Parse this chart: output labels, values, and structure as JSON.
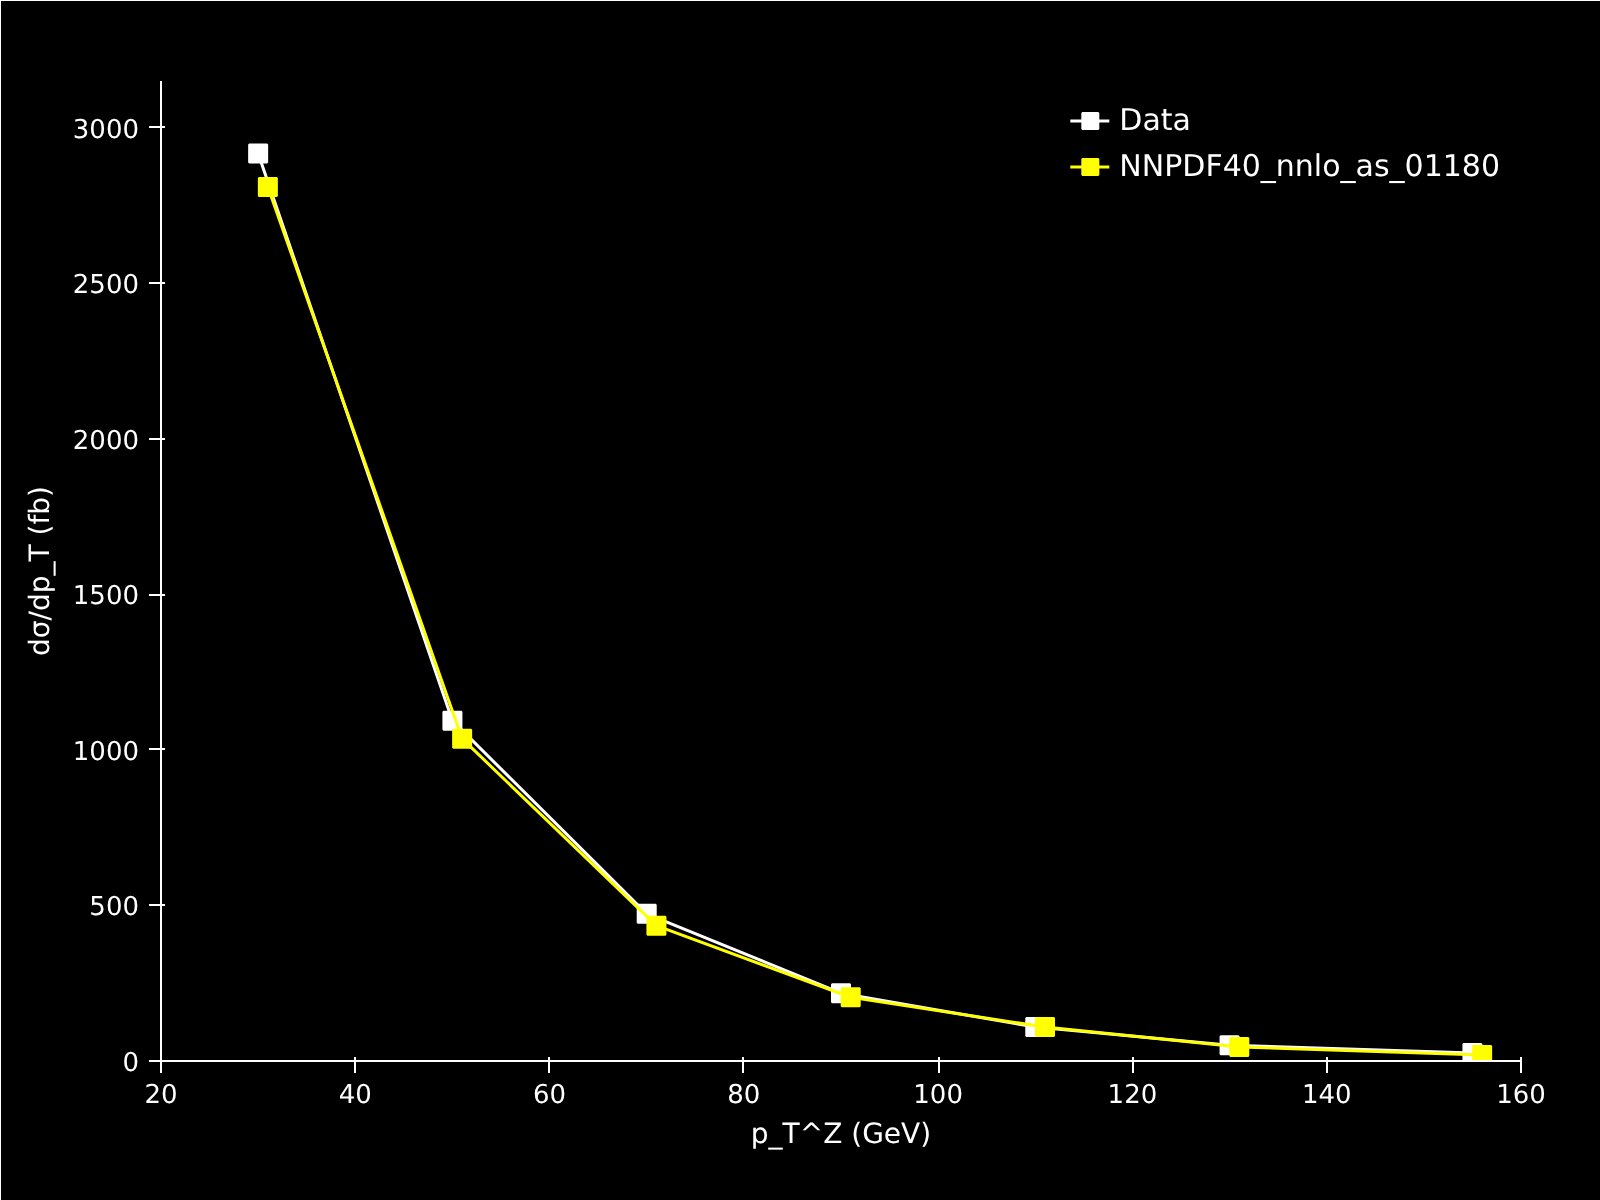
{
  "chart_data": {
    "type": "line",
    "xlabel": "p_T^Z (GeV)",
    "ylabel": "dσ/dp_T (fb)",
    "x": [
      30,
      50,
      70,
      90,
      110,
      130,
      155
    ],
    "series": [
      {
        "name": "Data",
        "color": "#ffffff",
        "values": [
          2917,
          1094,
          473,
          218,
          109,
          51,
          26
        ]
      },
      {
        "name": "NNPDF40_nnlo_as_01180",
        "color": "#ffff00",
        "x": [
          31,
          51,
          71,
          91,
          111,
          131,
          156
        ],
        "values": [
          2809,
          1036,
          435,
          205,
          109,
          45,
          19
        ]
      }
    ],
    "xlim": [
      20,
      160
    ],
    "xticks": [
      20,
      40,
      60,
      80,
      100,
      120,
      140,
      160
    ],
    "ylim": [
      0,
      3150
    ],
    "yticks": [
      0,
      500,
      1000,
      1500,
      2000,
      2500,
      3000
    ],
    "grid": false,
    "legend": "top right",
    "marker": "square",
    "line_style": "solid"
  }
}
